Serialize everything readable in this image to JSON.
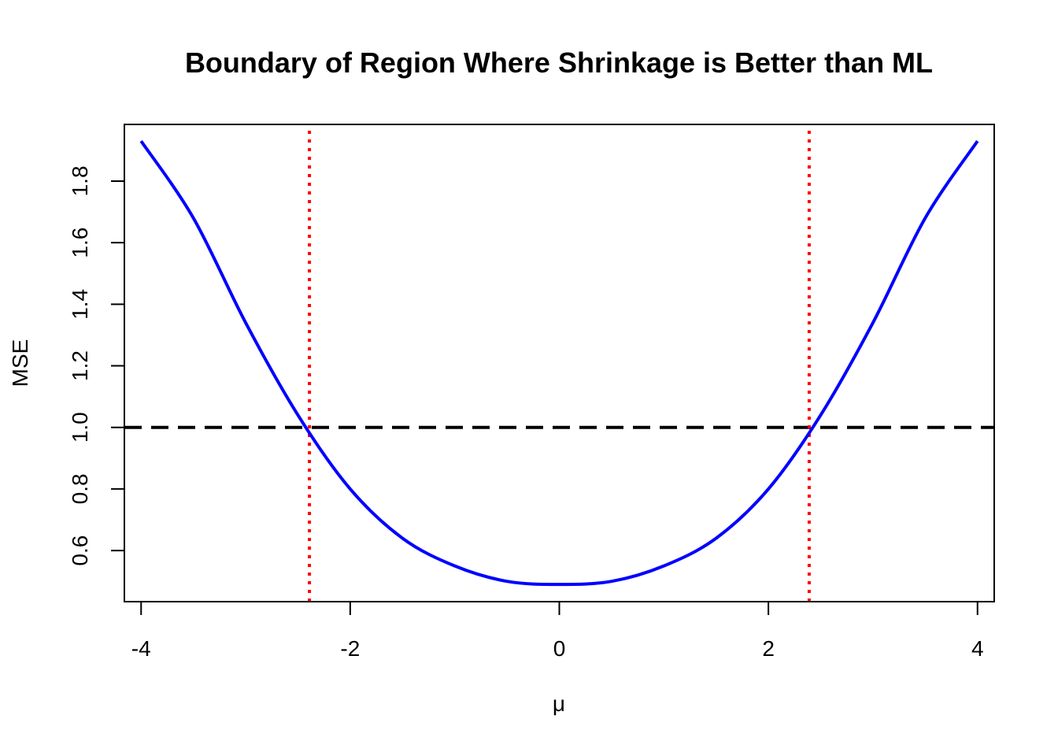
{
  "chart_data": {
    "type": "line",
    "title": "Boundary of Region Where Shrinkage is Better than ML",
    "xlabel": "μ",
    "ylabel": "MSE",
    "xlim": [
      -4.16,
      4.16
    ],
    "ylim": [
      0.434,
      1.984
    ],
    "x_ticks": [
      -4,
      -2,
      0,
      2,
      4
    ],
    "y_ticks": [
      0.6,
      0.8,
      1.0,
      1.2,
      1.4,
      1.6,
      1.8
    ],
    "x_tick_labels": [
      "-4",
      "-2",
      "0",
      "2",
      "4"
    ],
    "y_tick_labels": [
      "0.6",
      "0.8",
      "1.0",
      "1.2",
      "1.4",
      "1.6",
      "1.8"
    ],
    "grid": false,
    "series": [
      {
        "color": "#0000ff",
        "style": "solid",
        "x": [
          -4.0,
          -3.5,
          -3.0,
          -2.5,
          -2.0,
          -1.5,
          -1.0,
          -0.5,
          0.0,
          0.5,
          1.0,
          1.5,
          2.0,
          2.5,
          3.0,
          3.5,
          4.0
        ],
        "y": [
          1.93,
          1.68,
          1.34,
          1.04,
          0.8,
          0.64,
          0.55,
          0.5,
          0.49,
          0.5,
          0.55,
          0.64,
          0.8,
          1.04,
          1.34,
          1.68,
          1.93
        ]
      }
    ],
    "reference_lines": [
      {
        "orientation": "horizontal",
        "value": 1.0,
        "color": "#000000",
        "style": "dashed"
      },
      {
        "orientation": "vertical",
        "value": -2.39,
        "color": "#ff0000",
        "style": "dotted"
      },
      {
        "orientation": "vertical",
        "value": 2.39,
        "color": "#ff0000",
        "style": "dotted"
      }
    ]
  }
}
